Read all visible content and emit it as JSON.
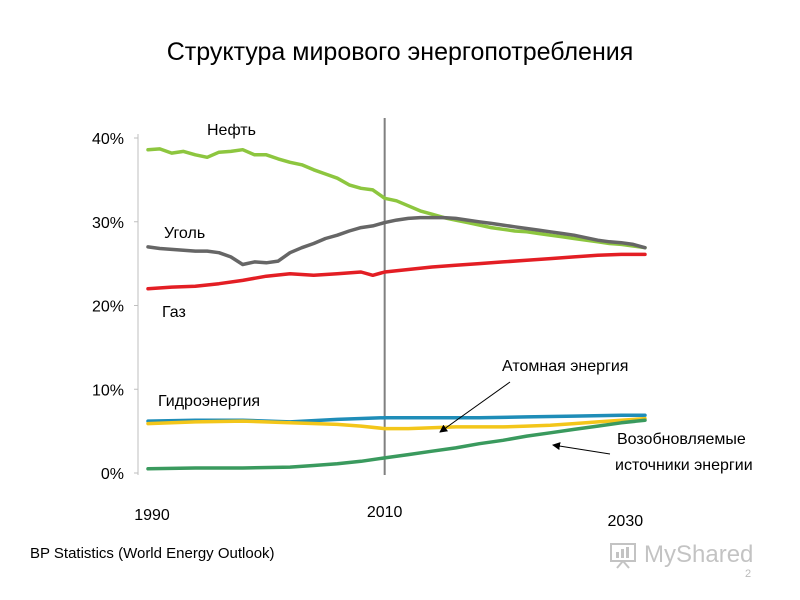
{
  "slide": {
    "title": "Структура мирового энергопотребления",
    "source": "BP Statistics (World Energy Outlook)",
    "watermark": "MyShared",
    "slide_number": "2"
  },
  "chart_data": {
    "type": "line",
    "title": "Структура мирового энергопотребления",
    "xlabel": "",
    "ylabel": "",
    "xlim": [
      1990,
      2032
    ],
    "ylim": [
      0,
      40
    ],
    "x_ticks": [
      {
        "value": 1990,
        "label": "1990"
      },
      {
        "value": 2010,
        "label": "2010"
      },
      {
        "value": 2030,
        "label": "2030"
      }
    ],
    "y_ticks": [
      {
        "value": 0,
        "label": "0%"
      },
      {
        "value": 10,
        "label": "10%"
      },
      {
        "value": 20,
        "label": "20%"
      },
      {
        "value": 30,
        "label": "30%"
      },
      {
        "value": 40,
        "label": "40%"
      }
    ],
    "vertical_line_x": 2010,
    "grid": false,
    "legend": "none",
    "series": [
      {
        "name": "Нефть",
        "color": "#8dc63f",
        "x": [
          1990,
          1991,
          1992,
          1993,
          1994,
          1995,
          1996,
          1997,
          1998,
          1999,
          2000,
          2001,
          2002,
          2003,
          2004,
          2005,
          2006,
          2007,
          2008,
          2009,
          2010,
          2011,
          2012,
          2013,
          2014,
          2015,
          2016,
          2017,
          2018,
          2019,
          2020,
          2021,
          2022,
          2023,
          2024,
          2025,
          2026,
          2027,
          2028,
          2029,
          2030,
          2031,
          2032
        ],
        "values": [
          38.6,
          38.7,
          38.2,
          38.4,
          38.0,
          37.7,
          38.3,
          38.4,
          38.6,
          38.0,
          38.0,
          37.5,
          37.1,
          36.8,
          36.2,
          35.7,
          35.2,
          34.4,
          34.0,
          33.8,
          32.8,
          32.5,
          31.9,
          31.3,
          30.9,
          30.5,
          30.2,
          29.9,
          29.6,
          29.3,
          29.1,
          28.9,
          28.8,
          28.6,
          28.4,
          28.2,
          28.0,
          27.8,
          27.6,
          27.4,
          27.3,
          27.1,
          26.9
        ]
      },
      {
        "name": "Уголь",
        "color": "#666666",
        "x": [
          1990,
          1991,
          1992,
          1993,
          1994,
          1995,
          1996,
          1997,
          1998,
          1999,
          2000,
          2001,
          2002,
          2003,
          2004,
          2005,
          2006,
          2007,
          2008,
          2009,
          2010,
          2011,
          2012,
          2013,
          2014,
          2015,
          2016,
          2017,
          2018,
          2019,
          2020,
          2021,
          2022,
          2023,
          2024,
          2025,
          2026,
          2027,
          2028,
          2029,
          2030,
          2031,
          2032
        ],
        "values": [
          27.0,
          26.8,
          26.7,
          26.6,
          26.5,
          26.5,
          26.3,
          25.8,
          24.9,
          25.2,
          25.1,
          25.3,
          26.3,
          26.9,
          27.4,
          28.0,
          28.4,
          28.9,
          29.3,
          29.5,
          29.9,
          30.2,
          30.4,
          30.5,
          30.5,
          30.5,
          30.4,
          30.2,
          30.0,
          29.8,
          29.6,
          29.4,
          29.2,
          29.0,
          28.8,
          28.6,
          28.4,
          28.1,
          27.8,
          27.6,
          27.5,
          27.3,
          26.9
        ]
      },
      {
        "name": "Газ",
        "color": "#e31e24",
        "x": [
          1990,
          1992,
          1994,
          1996,
          1998,
          2000,
          2002,
          2004,
          2006,
          2008,
          2009,
          2010,
          2012,
          2014,
          2016,
          2018,
          2020,
          2022,
          2024,
          2026,
          2028,
          2030,
          2032
        ],
        "values": [
          22.0,
          22.2,
          22.3,
          22.6,
          23.0,
          23.5,
          23.8,
          23.6,
          23.8,
          24.0,
          23.6,
          24.0,
          24.3,
          24.6,
          24.8,
          25.0,
          25.2,
          25.4,
          25.6,
          25.8,
          26.0,
          26.1,
          26.1
        ]
      },
      {
        "name": "Гидроэнергия",
        "color": "#1f8db8",
        "x": [
          1990,
          1994,
          1998,
          2002,
          2006,
          2010,
          2014,
          2018,
          2022,
          2026,
          2030,
          2032
        ],
        "values": [
          6.2,
          6.3,
          6.3,
          6.1,
          6.4,
          6.6,
          6.6,
          6.6,
          6.7,
          6.8,
          6.9,
          6.9
        ]
      },
      {
        "name": "Атомная энергия",
        "color": "#f3c61a",
        "x": [
          1990,
          1994,
          1998,
          2002,
          2006,
          2008,
          2010,
          2012,
          2014,
          2016,
          2018,
          2020,
          2022,
          2024,
          2026,
          2028,
          2030,
          2032
        ],
        "values": [
          5.9,
          6.1,
          6.2,
          6.0,
          5.8,
          5.6,
          5.3,
          5.3,
          5.4,
          5.5,
          5.5,
          5.5,
          5.6,
          5.7,
          5.9,
          6.1,
          6.3,
          6.5
        ]
      },
      {
        "name": "Возобновляемые источники энергии",
        "color": "#3a9a5e",
        "x": [
          1990,
          1994,
          1998,
          2002,
          2004,
          2006,
          2008,
          2010,
          2012,
          2014,
          2016,
          2018,
          2020,
          2022,
          2024,
          2026,
          2028,
          2030,
          2032
        ],
        "values": [
          0.5,
          0.6,
          0.6,
          0.7,
          0.9,
          1.1,
          1.4,
          1.8,
          2.2,
          2.6,
          3.0,
          3.5,
          3.9,
          4.4,
          4.8,
          5.2,
          5.6,
          6.0,
          6.3
        ]
      }
    ],
    "annotations": [
      {
        "text": "Атомная энергия",
        "arrow_to_series": "Атомная энергия"
      },
      {
        "text": "Возобновляемые источники энергии",
        "arrow_to_series": "Возобновляемые источники энергии"
      }
    ]
  }
}
